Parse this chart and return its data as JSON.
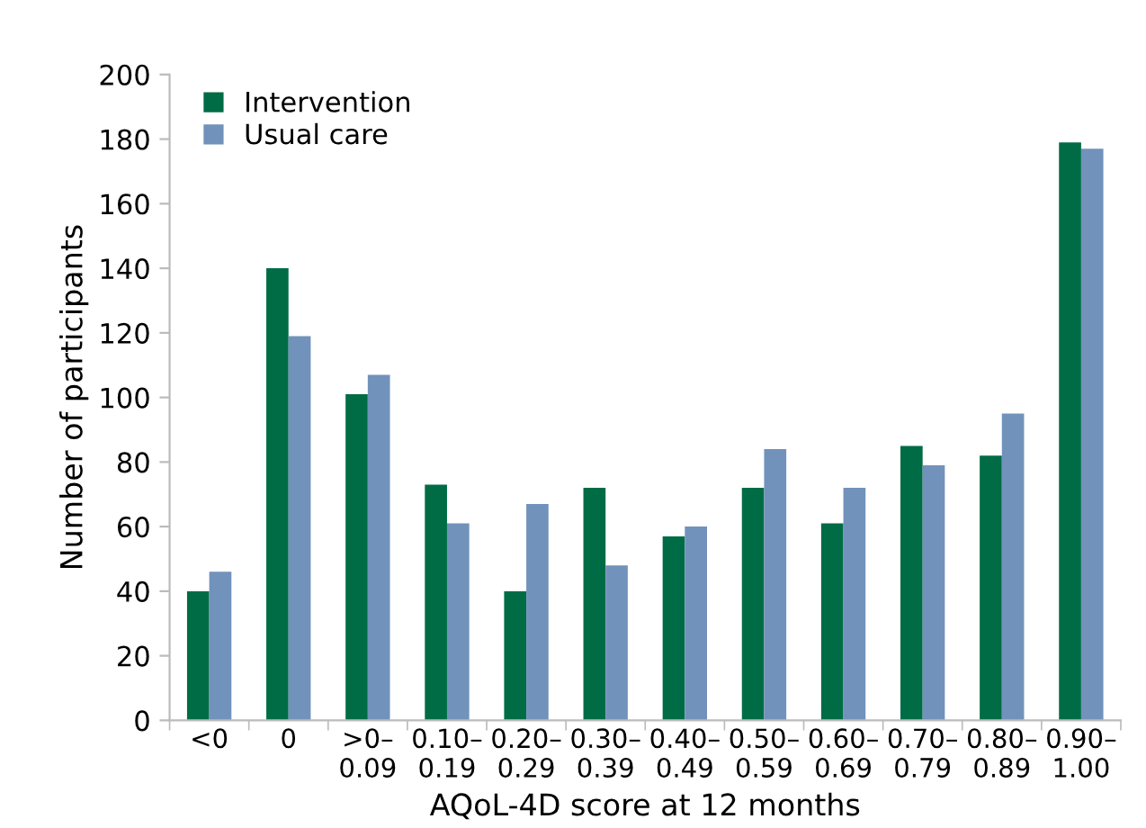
{
  "chart_data": {
    "type": "bar",
    "xlabel": "AQoL-4D score at 12 months",
    "ylabel": "Number of participants",
    "categories": [
      "<0",
      "0",
      ">0–\n0.09",
      "0.10–\n0.19",
      "0.20–\n0.29",
      "0.30–\n0.39",
      "0.40–\n0.49",
      "0.50–\n0.59",
      "0.60–\n0.69",
      "0.70–\n0.79",
      "0.80–\n0.89",
      "0.90–\n1.00"
    ],
    "series": [
      {
        "name": "Intervention",
        "color": "#006c45",
        "values": [
          40,
          140,
          101,
          73,
          40,
          72,
          57,
          72,
          61,
          85,
          82,
          179
        ]
      },
      {
        "name": "Usual care",
        "color": "#7192bb",
        "values": [
          46,
          119,
          107,
          61,
          67,
          48,
          60,
          84,
          72,
          79,
          95,
          177
        ]
      }
    ],
    "ylim": [
      0,
      200
    ],
    "yticks": [
      0,
      20,
      40,
      60,
      80,
      100,
      120,
      140,
      160,
      180,
      200
    ],
    "grid": false,
    "legend": "top left"
  }
}
